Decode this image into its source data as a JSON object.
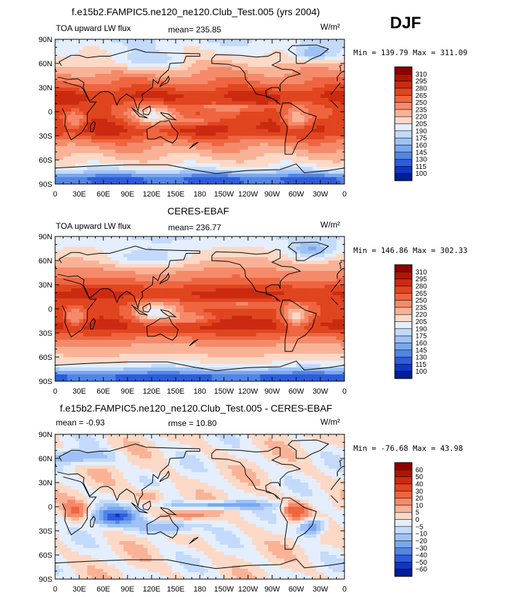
{
  "season": "DJF",
  "units": "W/m²",
  "x_ticks": [
    "0",
    "30E",
    "60E",
    "90E",
    "120E",
    "150E",
    "180",
    "150W",
    "120W",
    "90W",
    "60W",
    "30W",
    "0"
  ],
  "y_ticks": [
    "90N",
    "60N",
    "30N",
    "0",
    "30S",
    "60S",
    "90S"
  ],
  "panels": [
    {
      "title": "f.e15b2.FAMPIC5.ne120_ne120.Club_Test.005 (yrs 2004)",
      "left_label": "TOA upward LW flux",
      "center_label": "mean= 235.85",
      "minmax": "Min = 139.79  Max = 311.09"
    },
    {
      "title": "CERES-EBAF",
      "left_label": "TOA upward LW flux",
      "center_label": "mean= 236.77",
      "minmax": "Min = 146.86  Max = 302.33"
    },
    {
      "title": "f.e15b2.FAMPIC5.ne120_ne120.Club_Test.005 - CERES-EBAF",
      "left_label": "mean =   -0.93",
      "center_label": "rmse =   10.80",
      "minmax": "Min = -76.68  Max =   43.98"
    }
  ],
  "chart_data": [
    {
      "type": "heatmap",
      "title": "f.e15b2.FAMPIC5.ne120_ne120.Club_Test.005 (yrs 2004)",
      "variable": "TOA upward LW flux",
      "mean": 235.85,
      "min": 139.79,
      "max": 311.09,
      "xlim": [
        0,
        360
      ],
      "ylim": [
        -90,
        90
      ],
      "colorbar_levels": [
        310,
        295,
        280,
        265,
        250,
        235,
        220,
        205,
        190,
        175,
        160,
        145,
        130,
        115,
        100
      ],
      "colorbar_colors": [
        "#8b0000",
        "#b01400",
        "#cc2a10",
        "#e0451f",
        "#ee6540",
        "#f58a6a",
        "#f9b296",
        "#fcd9c6",
        "#e4eefc",
        "#c3dafa",
        "#9fc2f5",
        "#7aa7ee",
        "#5285e6",
        "#2d5cdc",
        "#0f35c8",
        "#001e96"
      ]
    },
    {
      "type": "heatmap",
      "title": "CERES-EBAF",
      "variable": "TOA upward LW flux",
      "mean": 236.77,
      "min": 146.86,
      "max": 302.33,
      "xlim": [
        0,
        360
      ],
      "ylim": [
        -90,
        90
      ],
      "colorbar_levels": [
        310,
        295,
        280,
        265,
        250,
        235,
        220,
        205,
        190,
        175,
        160,
        145,
        130,
        115,
        100
      ],
      "colorbar_colors": [
        "#8b0000",
        "#b01400",
        "#cc2a10",
        "#e0451f",
        "#ee6540",
        "#f58a6a",
        "#f9b296",
        "#fcd9c6",
        "#e4eefc",
        "#c3dafa",
        "#9fc2f5",
        "#7aa7ee",
        "#5285e6",
        "#2d5cdc",
        "#0f35c8",
        "#001e96"
      ]
    },
    {
      "type": "heatmap",
      "title": "f.e15b2.FAMPIC5.ne120_ne120.Club_Test.005 - CERES-EBAF",
      "mean": -0.93,
      "rmse": 10.8,
      "min": -76.68,
      "max": 43.98,
      "xlim": [
        0,
        360
      ],
      "ylim": [
        -90,
        90
      ],
      "colorbar_levels": [
        60,
        50,
        40,
        30,
        20,
        10,
        5,
        0,
        -5,
        -10,
        -20,
        -30,
        -40,
        -50,
        -60
      ],
      "colorbar_colors": [
        "#8b0000",
        "#b01400",
        "#cc2a10",
        "#e0451f",
        "#ee6540",
        "#f58a6a",
        "#f9b296",
        "#fcd9c6",
        "#e4eefc",
        "#c3dafa",
        "#9fc2f5",
        "#7aa7ee",
        "#5285e6",
        "#2d5cdc",
        "#0f35c8",
        "#001e96"
      ]
    }
  ]
}
